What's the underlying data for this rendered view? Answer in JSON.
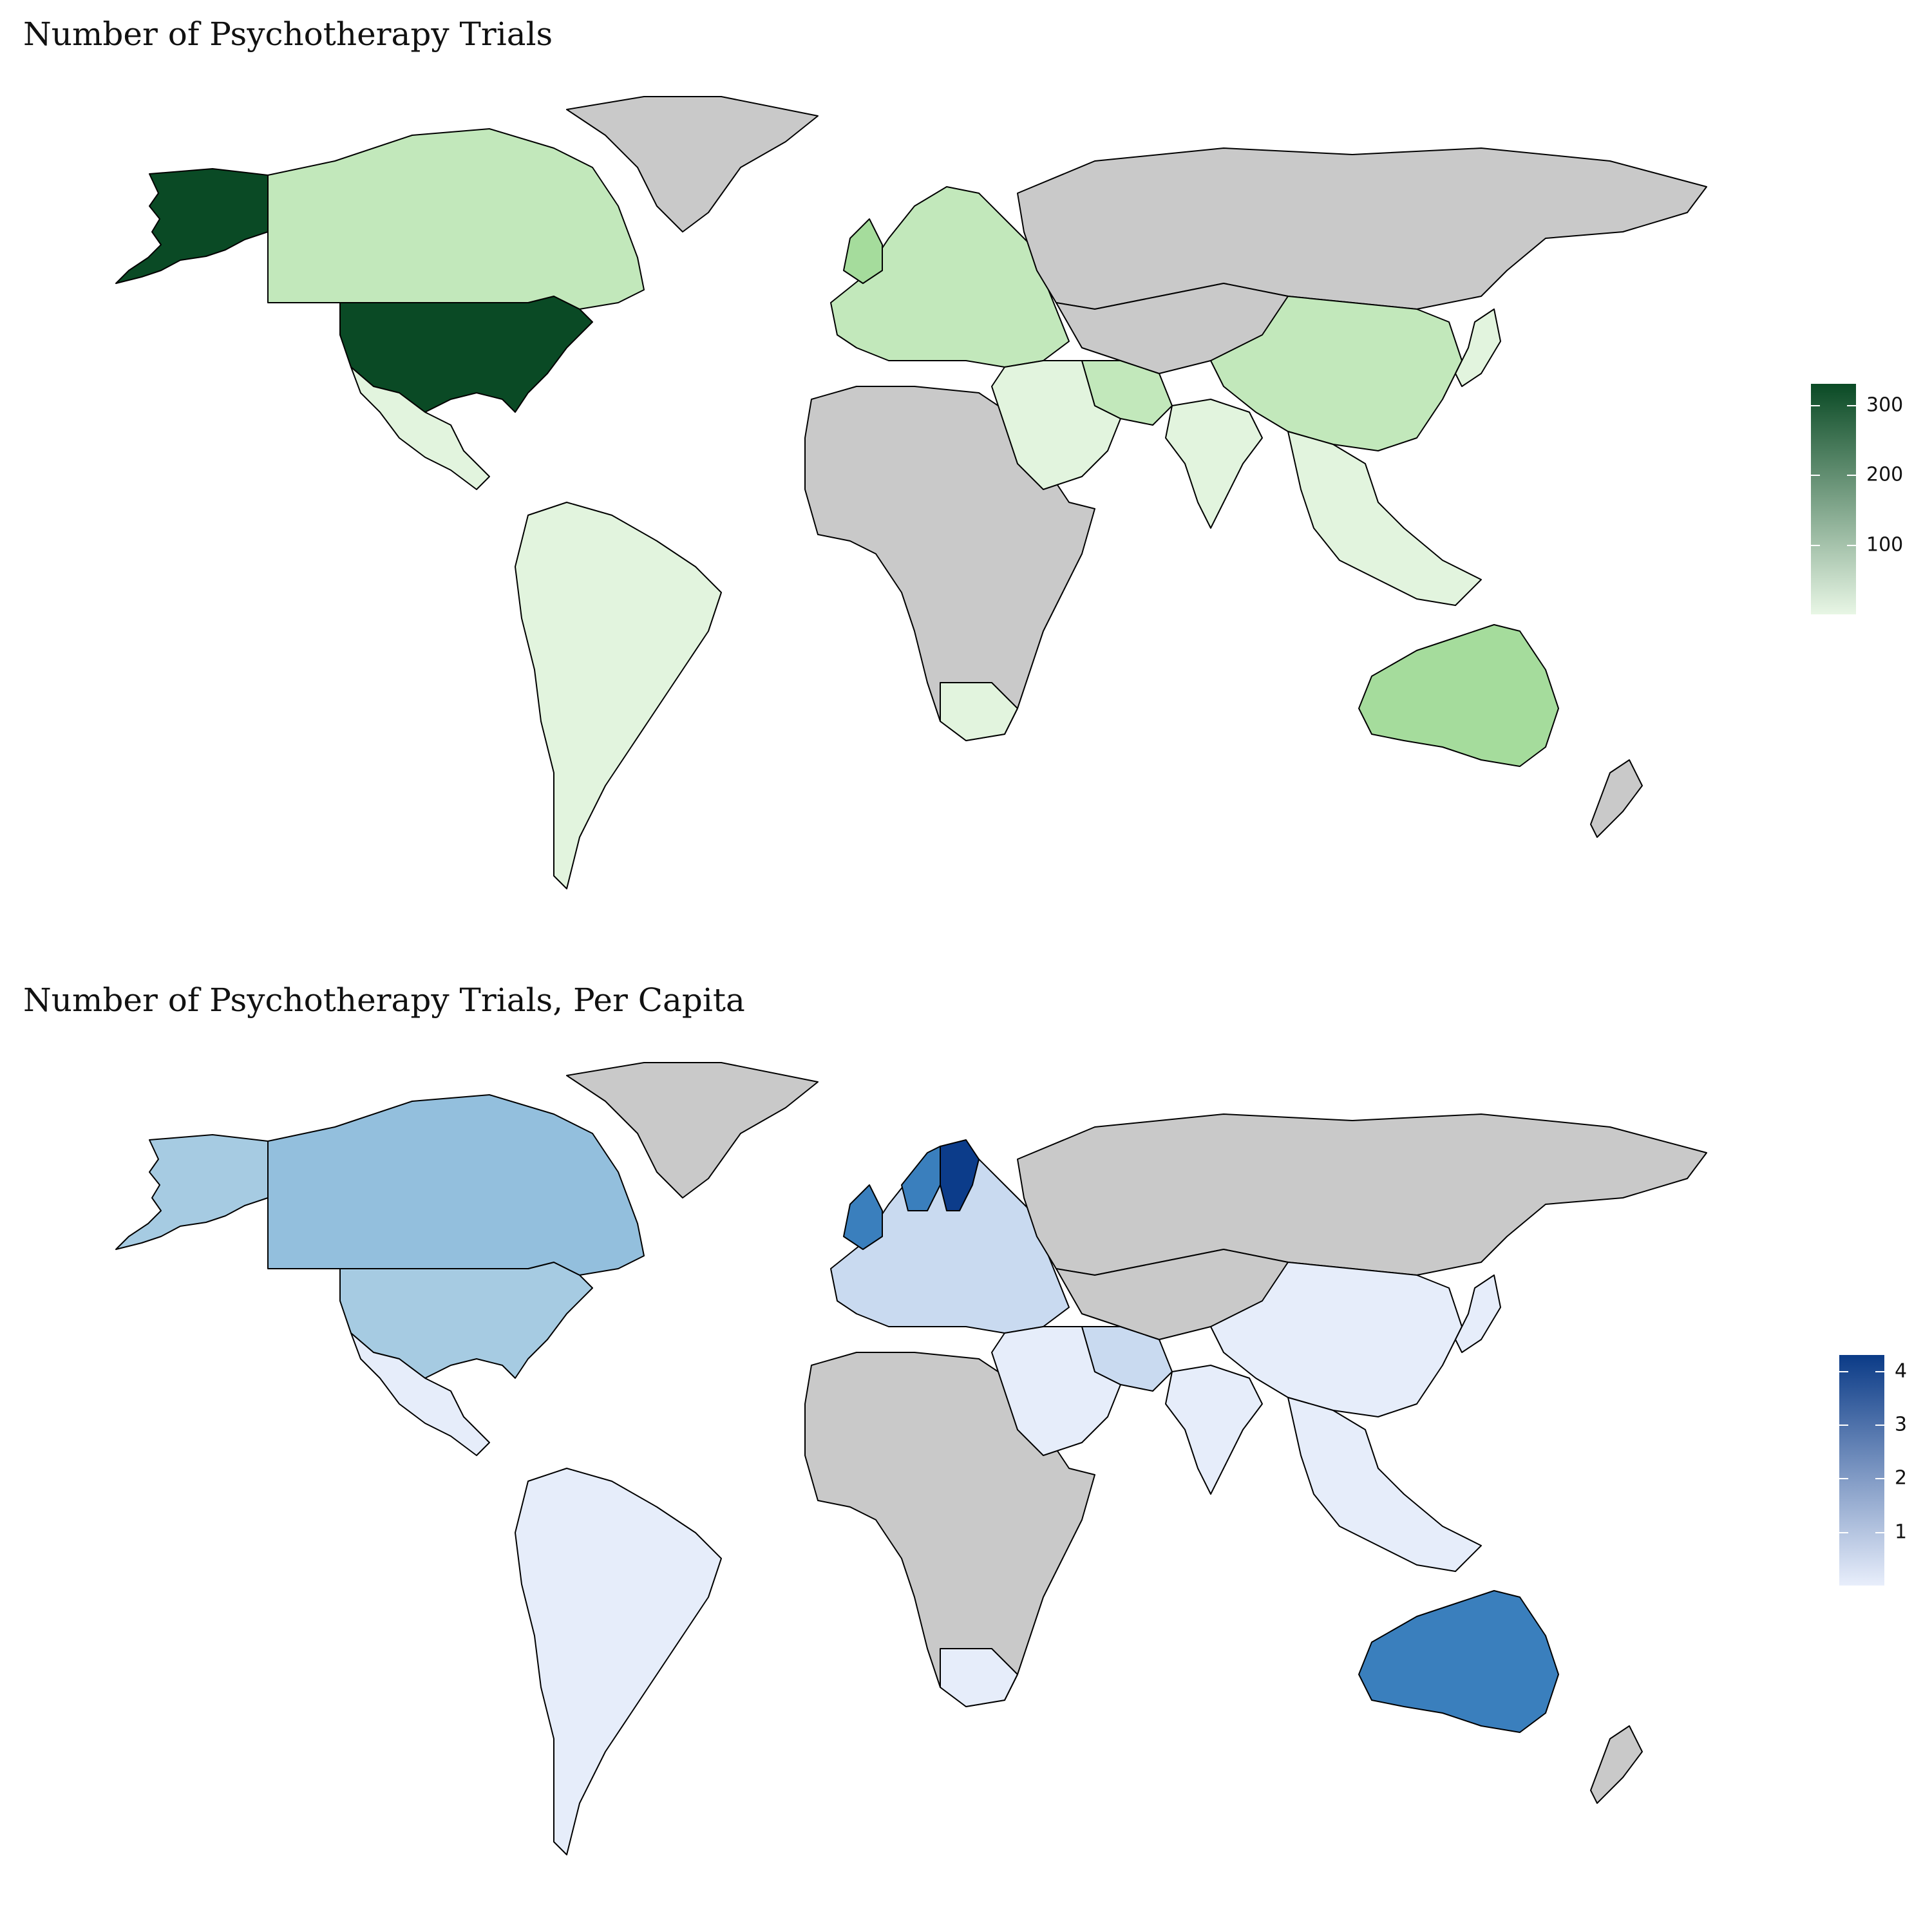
{
  "maps": [
    {
      "title": "Number of Psychotherapy Trials",
      "colors": {
        "no_data": "#c9c9c9",
        "very_light": "#e2f4de",
        "light": "#c2e8bb",
        "medium": "#a5dc9c",
        "dark": "#0a4a25",
        "gradient_low": "#e8f6e5",
        "gradient_high": "#0a4a25"
      },
      "legend": {
        "ticks": [
          "100",
          "200",
          "300"
        ],
        "tick_values": [
          100,
          200,
          300
        ],
        "min": 0,
        "max": 330
      },
      "regions": [
        {
          "name": "United States",
          "shade": "dark"
        },
        {
          "name": "Alaska",
          "shade": "dark"
        },
        {
          "name": "Canada",
          "shade": "light"
        },
        {
          "name": "Greenland",
          "shade": "no_data"
        },
        {
          "name": "Mexico",
          "shade": "very_light"
        },
        {
          "name": "South America",
          "shade": "very_light"
        },
        {
          "name": "Europe",
          "shade": "light"
        },
        {
          "name": "United Kingdom",
          "shade": "medium"
        },
        {
          "name": "Russia",
          "shade": "no_data"
        },
        {
          "name": "Africa",
          "shade": "no_data"
        },
        {
          "name": "South Africa",
          "shade": "very_light"
        },
        {
          "name": "Middle East",
          "shade": "very_light"
        },
        {
          "name": "Iran",
          "shade": "light"
        },
        {
          "name": "India",
          "shade": "very_light"
        },
        {
          "name": "China",
          "shade": "light"
        },
        {
          "name": "Central Asia",
          "shade": "no_data"
        },
        {
          "name": "Southeast Asia",
          "shade": "very_light"
        },
        {
          "name": "Japan",
          "shade": "very_light"
        },
        {
          "name": "Australia",
          "shade": "medium"
        },
        {
          "name": "New Zealand",
          "shade": "no_data"
        }
      ]
    },
    {
      "title": "Number of Psychotherapy Trials, Per Capita",
      "colors": {
        "no_data": "#c9c9c9",
        "very_light": "#e6edfa",
        "light": "#c9daf0",
        "medium": "#93bfdd",
        "medium_light": "#a6cbe2",
        "strong": "#3a7fbd",
        "dark": "#0c3c8a",
        "gradient_low": "#e8eefb",
        "gradient_high": "#0b3b87"
      },
      "legend": {
        "ticks": [
          "1",
          "2",
          "3",
          "4"
        ],
        "tick_values": [
          1,
          2,
          3,
          4
        ],
        "min": 0,
        "max": 4.3
      },
      "regions": [
        {
          "name": "United States",
          "shade": "medium_light"
        },
        {
          "name": "Alaska",
          "shade": "medium_light"
        },
        {
          "name": "Canada",
          "shade": "medium"
        },
        {
          "name": "Greenland",
          "shade": "no_data"
        },
        {
          "name": "Mexico",
          "shade": "very_light"
        },
        {
          "name": "South America",
          "shade": "very_light"
        },
        {
          "name": "Europe",
          "shade": "light"
        },
        {
          "name": "Scandinavia",
          "shade": "dark"
        },
        {
          "name": "Norway",
          "shade": "strong"
        },
        {
          "name": "United Kingdom",
          "shade": "strong"
        },
        {
          "name": "Russia",
          "shade": "no_data"
        },
        {
          "name": "Africa",
          "shade": "no_data"
        },
        {
          "name": "South Africa",
          "shade": "very_light"
        },
        {
          "name": "Middle East",
          "shade": "very_light"
        },
        {
          "name": "Iran",
          "shade": "light"
        },
        {
          "name": "India",
          "shade": "very_light"
        },
        {
          "name": "China",
          "shade": "very_light"
        },
        {
          "name": "Central Asia",
          "shade": "no_data"
        },
        {
          "name": "Southeast Asia",
          "shade": "very_light"
        },
        {
          "name": "Japan",
          "shade": "very_light"
        },
        {
          "name": "Australia",
          "shade": "strong"
        },
        {
          "name": "New Zealand",
          "shade": "no_data"
        }
      ]
    }
  ]
}
